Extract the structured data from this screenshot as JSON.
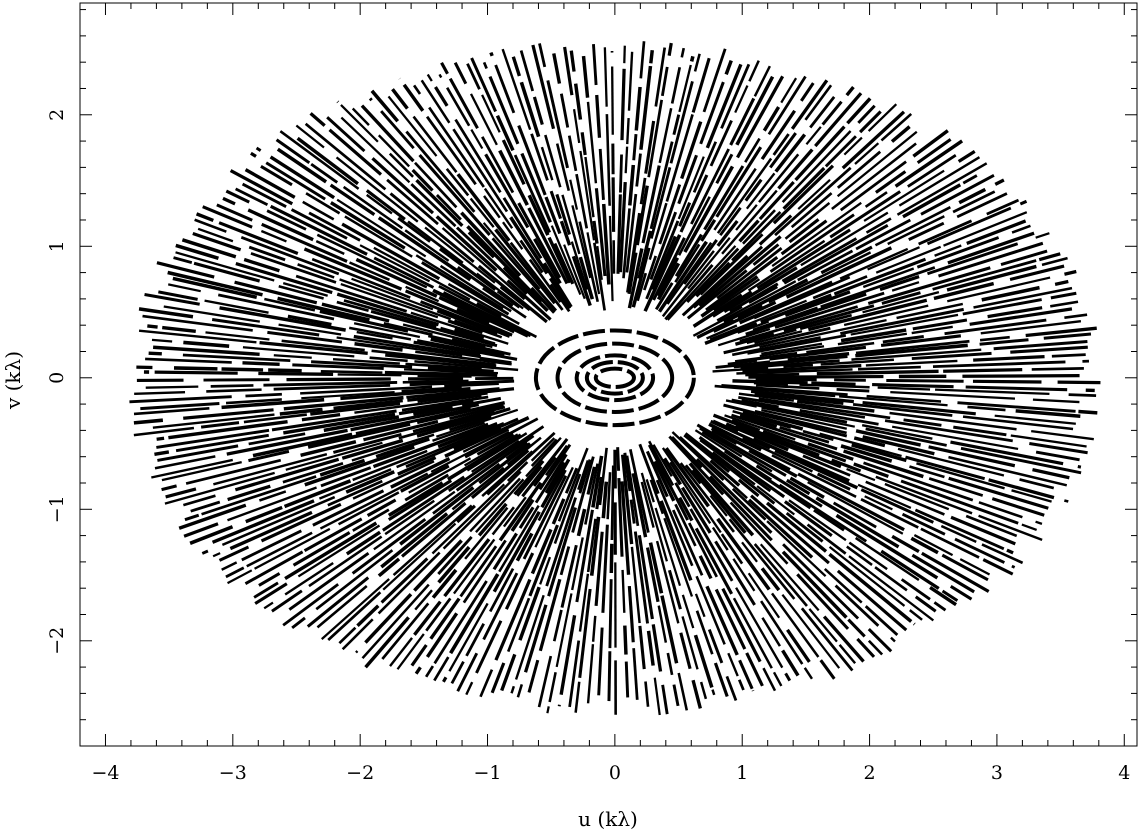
{
  "chart_data": {
    "type": "scatter",
    "title": "",
    "xlabel": "u (kλ)",
    "ylabel": "v (kλ)",
    "xlim": [
      -4.2,
      4.1
    ],
    "ylim": [
      -2.8,
      2.85
    ],
    "xticks": [
      -4,
      -3,
      -2,
      -1,
      0,
      1,
      2,
      3,
      4
    ],
    "xtick_labels": [
      "−4",
      "−3",
      "−2",
      "−1",
      "0",
      "1",
      "2",
      "3",
      "4"
    ],
    "yticks": [
      -2,
      -1,
      0,
      1,
      2
    ],
    "ytick_labels": [
      "−2",
      "−1",
      "0",
      "1",
      "2"
    ],
    "grid": false,
    "legend": "none",
    "description_of_data": "uv-coverage: radial track segments filling an ellipse with semi-axes ~3.8 (u) and ~2.55 (v), plus concentric elliptical rings near the origin",
    "coverage_extent": {
      "u_max": 3.8,
      "v_max": 2.55
    },
    "inner_rings": [
      {
        "u_semi": 0.15,
        "v_semi": 0.07
      },
      {
        "u_semi": 0.22,
        "v_semi": 0.12
      },
      {
        "u_semi": 0.3,
        "v_semi": 0.17
      },
      {
        "u_semi": 0.45,
        "v_semi": 0.26
      },
      {
        "u_semi": 0.62,
        "v_semi": 0.36
      }
    ],
    "point_color": "#000000"
  }
}
